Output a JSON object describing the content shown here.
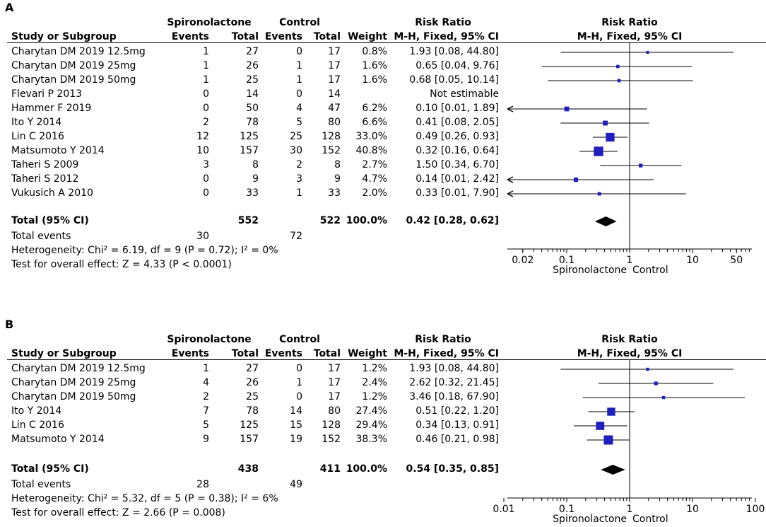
{
  "columns": {
    "study": "Study or Subgroup",
    "group1": "Spironolactone",
    "group2": "Control",
    "events": "Events",
    "total": "Total",
    "weight": "Weight",
    "rr_title": "Risk Ratio",
    "rr_method": "M-H, Fixed, 95% CI"
  },
  "panels": [
    {
      "label": "A",
      "rows": [
        {
          "study": "Charytan DM 2019 12.5mg",
          "e1": "1",
          "n1": "27",
          "e2": "0",
          "n2": "17",
          "weight": "0.8%",
          "ci": "1.93 [0.08, 44.80]"
        },
        {
          "study": "Charytan DM 2019 25mg",
          "e1": "1",
          "n1": "26",
          "e2": "1",
          "n2": "17",
          "weight": "1.6%",
          "ci": "0.65 [0.04, 9.76]"
        },
        {
          "study": "Charytan DM 2019 50mg",
          "e1": "1",
          "n1": "25",
          "e2": "1",
          "n2": "17",
          "weight": "1.6%",
          "ci": "0.68 [0.05, 10.14]"
        },
        {
          "study": "Flevari P 2013",
          "e1": "0",
          "n1": "14",
          "e2": "0",
          "n2": "14",
          "weight": "",
          "ci": "Not estimable"
        },
        {
          "study": "Hammer F 2019",
          "e1": "0",
          "n1": "50",
          "e2": "4",
          "n2": "47",
          "weight": "6.2%",
          "ci": "0.10 [0.01, 1.89]"
        },
        {
          "study": "Ito Y 2014",
          "e1": "2",
          "n1": "78",
          "e2": "5",
          "n2": "80",
          "weight": "6.6%",
          "ci": "0.41 [0.08, 2.05]"
        },
        {
          "study": "Lin C 2016",
          "e1": "12",
          "n1": "125",
          "e2": "25",
          "n2": "128",
          "weight": "33.0%",
          "ci": "0.49 [0.26, 0.93]"
        },
        {
          "study": "Matsumoto Y 2014",
          "e1": "10",
          "n1": "157",
          "e2": "30",
          "n2": "152",
          "weight": "40.8%",
          "ci": "0.32 [0.16, 0.64]"
        },
        {
          "study": "Taheri S 2009",
          "e1": "3",
          "n1": "8",
          "e2": "2",
          "n2": "8",
          "weight": "2.7%",
          "ci": "1.50 [0.34, 6.70]"
        },
        {
          "study": "Taheri S 2012",
          "e1": "0",
          "n1": "9",
          "e2": "3",
          "n2": "9",
          "weight": "4.7%",
          "ci": "0.14 [0.01, 2.42]"
        },
        {
          "study": "Vukusich A 2010",
          "e1": "0",
          "n1": "33",
          "e2": "1",
          "n2": "33",
          "weight": "2.0%",
          "ci": "0.33 [0.01, 7.90]"
        }
      ],
      "total": {
        "label": "Total (95% CI)",
        "n1": "552",
        "n2": "522",
        "weight": "100.0%",
        "ci": "0.42 [0.28, 0.62]"
      },
      "total_events": {
        "label": "Total events",
        "e1": "30",
        "e2": "72"
      },
      "heterogeneity": "Heterogeneity: Chi² = 6.19, df = 9 (P = 0.72); I² = 0%",
      "overall": "Test for overall effect: Z = 4.33 (P < 0.0001)",
      "axis_left_label": "Spironolactone",
      "axis_right_label": "Control"
    },
    {
      "label": "B",
      "rows": [
        {
          "study": "Charytan DM 2019 12.5mg",
          "e1": "1",
          "n1": "27",
          "e2": "0",
          "n2": "17",
          "weight": "1.2%",
          "ci": "1.93 [0.08, 44.80]"
        },
        {
          "study": "Charytan DM 2019 25mg",
          "e1": "4",
          "n1": "26",
          "e2": "1",
          "n2": "17",
          "weight": "2.4%",
          "ci": "2.62 [0.32, 21.45]"
        },
        {
          "study": "Charytan DM 2019 50mg",
          "e1": "2",
          "n1": "25",
          "e2": "0",
          "n2": "17",
          "weight": "1.2%",
          "ci": "3.46 [0.18, 67.90]"
        },
        {
          "study": "Ito Y 2014",
          "e1": "7",
          "n1": "78",
          "e2": "14",
          "n2": "80",
          "weight": "27.4%",
          "ci": "0.51 [0.22, 1.20]"
        },
        {
          "study": "Lin C 2016",
          "e1": "5",
          "n1": "125",
          "e2": "15",
          "n2": "128",
          "weight": "29.4%",
          "ci": "0.34 [0.13, 0.91]"
        },
        {
          "study": "Matsumoto Y 2014",
          "e1": "9",
          "n1": "157",
          "e2": "19",
          "n2": "152",
          "weight": "38.3%",
          "ci": "0.46 [0.21, 0.98]"
        }
      ],
      "total": {
        "label": "Total (95% CI)",
        "n1": "438",
        "n2": "411",
        "weight": "100.0%",
        "ci": "0.54 [0.35, 0.85]"
      },
      "total_events": {
        "label": "Total events",
        "e1": "28",
        "e2": "49"
      },
      "heterogeneity": "Heterogeneity: Chi² = 5.32, df = 5 (P = 0.38); I² = 6%",
      "overall": "Test for overall effect: Z = 2.66 (P = 0.008)",
      "axis_left_label": "Spironolactone",
      "axis_right_label": "Control"
    }
  ],
  "chart_data": [
    {
      "type": "forest",
      "panel": "A",
      "title": "Risk Ratio",
      "subtitle": "M-H, Fixed, 95% CI",
      "scale": "log",
      "xlim": [
        0.01,
        100
      ],
      "x_ticks": [
        "0.02",
        "0.1",
        "1",
        "10",
        "50"
      ],
      "x_tick_values": [
        0.02,
        0.1,
        1,
        10,
        50
      ],
      "xlabel_left": "Spironolactone",
      "xlabel_right": "Control",
      "studies": [
        {
          "name": "Charytan DM 2019 12.5mg",
          "rr": 1.93,
          "lo": 0.08,
          "hi": 44.8,
          "weight": 0.8
        },
        {
          "name": "Charytan DM 2019 25mg",
          "rr": 0.65,
          "lo": 0.04,
          "hi": 9.76,
          "weight": 1.6
        },
        {
          "name": "Charytan DM 2019 50mg",
          "rr": 0.68,
          "lo": 0.05,
          "hi": 10.14,
          "weight": 1.6
        },
        {
          "name": "Flevari P 2013",
          "rr": null,
          "lo": null,
          "hi": null,
          "weight": 0
        },
        {
          "name": "Hammer F 2019",
          "rr": 0.1,
          "lo": 0.01,
          "hi": 1.89,
          "weight": 6.2
        },
        {
          "name": "Ito Y 2014",
          "rr": 0.41,
          "lo": 0.08,
          "hi": 2.05,
          "weight": 6.6
        },
        {
          "name": "Lin C 2016",
          "rr": 0.49,
          "lo": 0.26,
          "hi": 0.93,
          "weight": 33.0
        },
        {
          "name": "Matsumoto Y 2014",
          "rr": 0.32,
          "lo": 0.16,
          "hi": 0.64,
          "weight": 40.8
        },
        {
          "name": "Taheri S 2009",
          "rr": 1.5,
          "lo": 0.34,
          "hi": 6.7,
          "weight": 2.7
        },
        {
          "name": "Taheri S 2012",
          "rr": 0.14,
          "lo": 0.01,
          "hi": 2.42,
          "weight": 4.7
        },
        {
          "name": "Vukusich A 2010",
          "rr": 0.33,
          "lo": 0.01,
          "hi": 7.9,
          "weight": 2.0
        }
      ],
      "pooled": {
        "rr": 0.42,
        "lo": 0.28,
        "hi": 0.62
      }
    },
    {
      "type": "forest",
      "panel": "B",
      "title": "Risk Ratio",
      "subtitle": "M-H, Fixed, 95% CI",
      "scale": "log",
      "xlim": [
        0.01,
        100
      ],
      "x_ticks": [
        "0.01",
        "0.1",
        "1",
        "10",
        "100"
      ],
      "x_tick_values": [
        0.01,
        0.1,
        1,
        10,
        100
      ],
      "xlabel_left": "Spironolactone",
      "xlabel_right": "Control",
      "studies": [
        {
          "name": "Charytan DM 2019 12.5mg",
          "rr": 1.93,
          "lo": 0.08,
          "hi": 44.8,
          "weight": 1.2
        },
        {
          "name": "Charytan DM 2019 25mg",
          "rr": 2.62,
          "lo": 0.32,
          "hi": 21.45,
          "weight": 2.4
        },
        {
          "name": "Charytan DM 2019 50mg",
          "rr": 3.46,
          "lo": 0.18,
          "hi": 67.9,
          "weight": 1.2
        },
        {
          "name": "Ito Y 2014",
          "rr": 0.51,
          "lo": 0.22,
          "hi": 1.2,
          "weight": 27.4
        },
        {
          "name": "Lin C 2016",
          "rr": 0.34,
          "lo": 0.13,
          "hi": 0.91,
          "weight": 29.4
        },
        {
          "name": "Matsumoto Y 2014",
          "rr": 0.46,
          "lo": 0.21,
          "hi": 0.98,
          "weight": 38.3
        }
      ],
      "pooled": {
        "rr": 0.54,
        "lo": 0.35,
        "hi": 0.85
      }
    }
  ]
}
